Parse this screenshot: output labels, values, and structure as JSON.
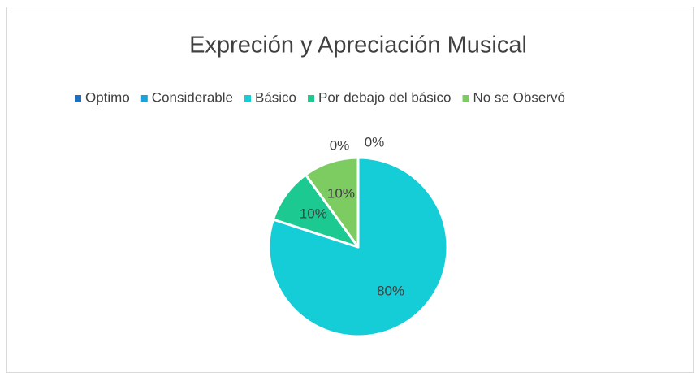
{
  "chart_data": {
    "type": "pie",
    "title": "Expreción y Apreciación Musical",
    "categories": [
      "Optimo",
      "Considerable",
      "Básico",
      "Por debajo del básico",
      "No se Observó"
    ],
    "values": [
      0,
      0,
      80,
      10,
      10
    ],
    "value_labels": [
      "0%",
      "0%",
      "80%",
      "10%",
      "10%"
    ],
    "colors": [
      "#1f6fc0",
      "#1aa3d9",
      "#14cdd6",
      "#1bc991",
      "#7ccc62"
    ],
    "legend": "top"
  }
}
